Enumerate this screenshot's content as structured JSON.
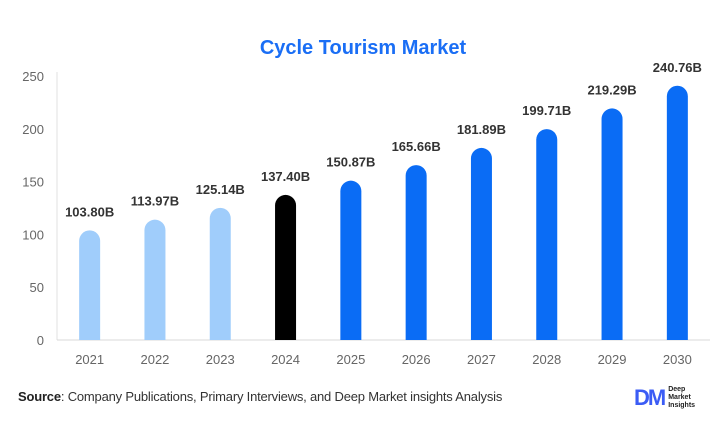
{
  "chart_data": {
    "type": "bar",
    "title": "Cycle Tourism Market",
    "categories": [
      "2021",
      "2022",
      "2023",
      "2024",
      "2025",
      "2026",
      "2027",
      "2028",
      "2029",
      "2030"
    ],
    "values": [
      103.8,
      113.97,
      125.14,
      137.4,
      150.87,
      165.66,
      181.89,
      199.71,
      219.29,
      240.76
    ],
    "data_labels": [
      "103.80B",
      "113.97B",
      "125.14B",
      "137.40B",
      "150.87B",
      "165.66B",
      "181.89B",
      "199.71B",
      "219.29B",
      "240.76B"
    ],
    "ylim": [
      0,
      250
    ],
    "yticks": [
      0,
      50,
      100,
      150,
      200,
      250
    ],
    "xlabel": "",
    "ylabel": "",
    "grid": false,
    "colors": {
      "historical": "#a0cdfb",
      "current": "#000000",
      "forecast": "#0a6cf5"
    },
    "bar_color_groups": [
      "historical",
      "historical",
      "historical",
      "current",
      "forecast",
      "forecast",
      "forecast",
      "forecast",
      "forecast",
      "forecast"
    ]
  },
  "footer": {
    "source_label": "Source",
    "source_text": ": Company Publications, Primary Interviews, and Deep Market insights Analysis",
    "logo_mark": "DM",
    "logo_lines": [
      "Deep",
      "Market",
      "Insights"
    ]
  }
}
